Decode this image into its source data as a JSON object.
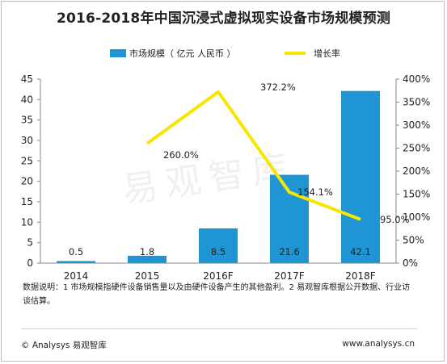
{
  "page": {
    "title": "2016-2018年中国沉浸式虚拟现实设备市场规模预测",
    "note": "数据说明：1 市场规模指硬件设备销售量以及由硬件设备产生的其他盈利。2 易观智库根据公开数据、行业访谈估算。",
    "footer_left": "© Analysys 易观智库",
    "footer_right": "www.analysys.cn",
    "watermark": "易观智库"
  },
  "chart_data": {
    "type": "bar",
    "categories": [
      "2014",
      "2015",
      "2016F",
      "2017F",
      "2018F"
    ],
    "series": [
      {
        "name": "市场规模（ 亿元 人民币 ）",
        "type": "bar",
        "axis": "left",
        "color": "#1f96d3",
        "values": [
          0.5,
          1.8,
          8.5,
          21.6,
          42.1
        ],
        "labels": [
          "0.5",
          "1.8",
          "8.5",
          "21.6",
          "42.1"
        ]
      },
      {
        "name": "增长率",
        "type": "line",
        "axis": "right",
        "color": "#f7e600",
        "values": [
          null,
          260.0,
          372.2,
          154.1,
          95.0
        ],
        "labels": [
          "",
          "260.0%",
          "372.2%",
          "154.1%",
          "95.0%"
        ]
      }
    ],
    "y_left": {
      "min": 0,
      "max": 45,
      "ticks": [
        "0",
        "5",
        "10",
        "15",
        "20",
        "25",
        "30",
        "35",
        "40",
        "45"
      ]
    },
    "y_right": {
      "min": 0,
      "max": 400,
      "ticks": [
        "0%",
        "50%",
        "100%",
        "150%",
        "200%",
        "250%",
        "300%",
        "350%",
        "400%"
      ]
    },
    "legend_position": "top",
    "grid": false
  }
}
